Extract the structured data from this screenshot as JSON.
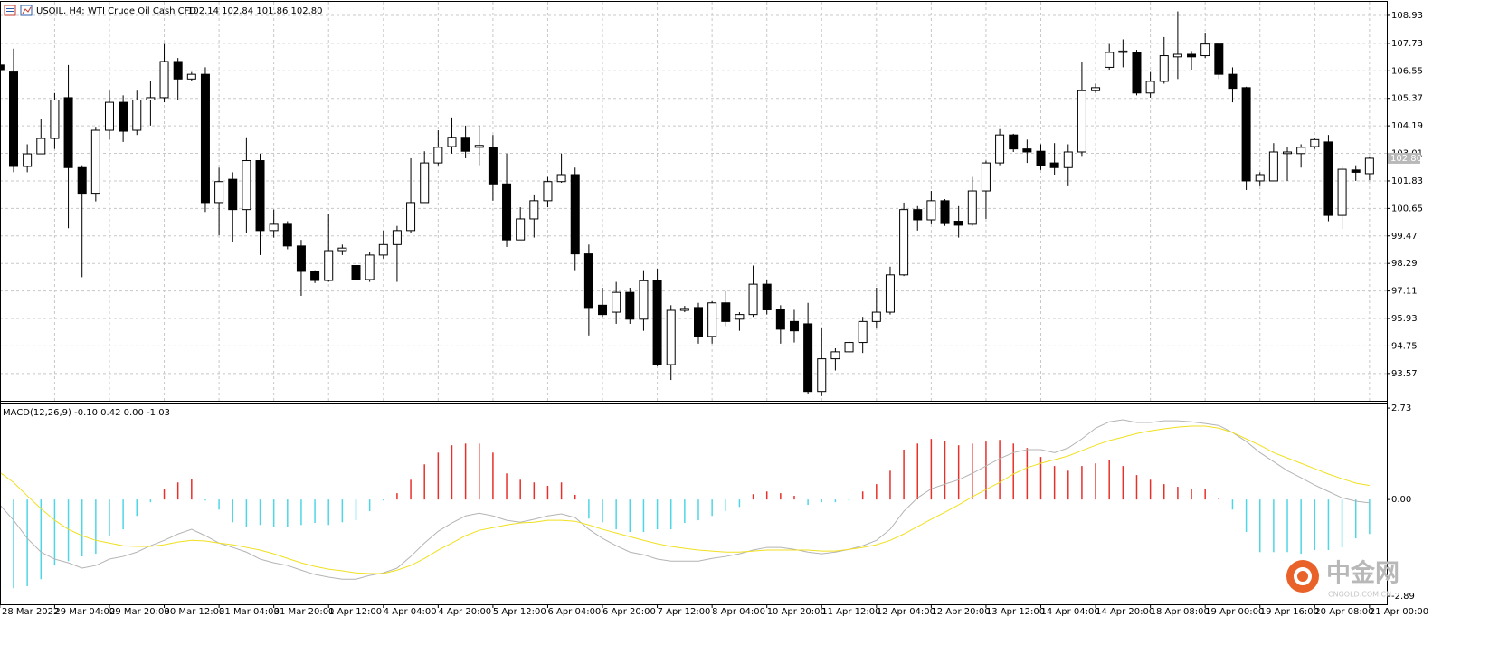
{
  "chart_data": [
    {
      "type": "candlestick",
      "symbol": "USOIL, H4:",
      "title": "WTI Crude Oil Cash CFD",
      "ohlc_text": "102.14 102.84 101.86 102.80",
      "categories": [
        "28 Mar 2022",
        null,
        null,
        null,
        "29 Mar 04:00",
        null,
        null,
        null,
        "29 Mar 20:00",
        null,
        null,
        null,
        "30 Mar 12:00",
        null,
        null,
        null,
        "31 Mar 04:00",
        null,
        null,
        null,
        "31 Mar 20:00",
        null,
        null,
        null,
        "1 Apr 12:00",
        null,
        null,
        null,
        "4 Apr 04:00",
        null,
        null,
        null,
        "4 Apr 20:00",
        null,
        null,
        null,
        "5 Apr 12:00",
        null,
        null,
        null,
        "6 Apr 04:00",
        null,
        null,
        null,
        "6 Apr 20:00",
        null,
        null,
        null,
        "7 Apr 12:00",
        null,
        null,
        null,
        "8 Apr 04:00",
        null,
        null,
        null,
        "10 Apr 20:00",
        null,
        null,
        null,
        "11 Apr 12:00",
        null,
        null,
        null,
        "12 Apr 04:00",
        null,
        null,
        null,
        "12 Apr 20:00",
        null,
        null,
        null,
        "13 Apr 12:00",
        null,
        null,
        null,
        "14 Apr 04:00",
        null,
        null,
        null,
        "14 Apr 20:00",
        null,
        null,
        null,
        "18 Apr 08:00",
        null,
        null,
        null,
        "19 Apr 00:00",
        null,
        null,
        null,
        "19 Apr 16:00",
        null,
        null,
        null,
        "20 Apr 08:00",
        null,
        null,
        null,
        "21 Apr 00:00"
      ],
      "open": [
        106.8,
        106.5,
        102.45,
        102.99,
        103.65,
        105.4,
        102.4,
        101.3,
        104.0,
        105.2,
        104.0,
        105.3,
        105.4,
        106.95,
        106.2,
        106.4,
        100.9,
        101.9,
        100.6,
        102.7,
        99.7,
        99.97,
        99.04,
        97.95,
        97.56,
        98.84,
        98.2,
        97.6,
        98.65,
        99.1,
        99.7,
        100.9,
        102.6,
        103.3,
        103.7,
        103.27,
        103.27,
        101.7,
        99.3,
        100.2,
        100.98,
        101.8,
        102.1,
        98.7,
        96.5,
        96.2,
        97.05,
        95.9,
        97.55,
        93.95,
        96.28,
        96.4,
        95.16,
        96.6,
        95.9,
        96.1,
        97.4,
        96.3,
        95.8,
        95.7,
        92.8,
        94.2,
        94.5,
        94.9,
        95.8,
        96.2,
        97.8,
        100.6,
        100.16,
        100.98,
        100.1,
        99.97,
        101.4,
        102.6,
        103.8,
        103.2,
        103.1,
        102.6,
        102.4,
        103.07,
        105.7,
        106.7,
        107.34,
        107.34,
        105.6,
        106.1,
        107.15,
        107.26,
        107.2,
        107.7,
        106.4,
        105.83,
        101.83,
        101.83,
        103.0,
        103.0,
        103.3,
        103.5,
        100.35,
        102.3,
        102.14
      ],
      "high": [
        107.0,
        107.5,
        103.4,
        104.5,
        105.6,
        106.8,
        102.5,
        104.15,
        105.7,
        105.5,
        105.7,
        106.1,
        107.7,
        107.1,
        106.5,
        106.7,
        102.4,
        102.2,
        103.7,
        103.0,
        100.6,
        100.1,
        99.3,
        98.0,
        100.4,
        99.1,
        98.3,
        98.8,
        99.7,
        99.9,
        102.8,
        103.1,
        104.0,
        104.55,
        104.2,
        104.2,
        103.8,
        103.0,
        100.7,
        101.25,
        102.0,
        103.0,
        102.4,
        99.1,
        97.25,
        97.5,
        97.25,
        98.0,
        98.06,
        96.5,
        96.47,
        96.6,
        96.67,
        97.1,
        96.2,
        98.2,
        97.6,
        96.5,
        96.3,
        96.6,
        95.55,
        94.65,
        95.0,
        96.0,
        97.25,
        98.15,
        100.9,
        100.75,
        101.4,
        101.05,
        100.75,
        102.0,
        102.7,
        104.05,
        103.85,
        103.6,
        103.4,
        103.45,
        103.4,
        106.95,
        106.0,
        107.7,
        107.9,
        107.45,
        106.5,
        108.0,
        109.1,
        107.4,
        108.15,
        107.7,
        106.7,
        105.87,
        102.2,
        103.45,
        103.3,
        103.4,
        103.65,
        103.8,
        102.49,
        102.5,
        102.84
      ],
      "low": [
        106.5,
        102.2,
        102.2,
        102.99,
        103.2,
        99.8,
        97.7,
        100.95,
        103.6,
        103.5,
        103.8,
        104.2,
        105.2,
        105.3,
        106.1,
        100.5,
        99.5,
        99.2,
        99.6,
        98.65,
        99.4,
        98.9,
        96.9,
        97.45,
        97.5,
        98.65,
        97.25,
        97.5,
        98.5,
        97.5,
        99.6,
        100.9,
        102.5,
        103.0,
        102.8,
        102.5,
        100.98,
        99.0,
        99.3,
        99.4,
        100.7,
        101.75,
        98.0,
        95.2,
        96.0,
        95.7,
        95.7,
        95.4,
        93.88,
        93.29,
        96.2,
        94.85,
        94.85,
        95.6,
        95.4,
        96.0,
        96.1,
        94.85,
        94.9,
        92.7,
        92.6,
        93.7,
        94.45,
        94.45,
        95.5,
        96.1,
        97.75,
        99.7,
        99.97,
        99.9,
        99.4,
        99.9,
        100.2,
        102.5,
        103.07,
        102.6,
        102.3,
        102.1,
        101.6,
        102.9,
        105.6,
        106.6,
        106.7,
        105.5,
        105.4,
        106.0,
        106.2,
        106.6,
        107.1,
        106.2,
        105.2,
        101.44,
        101.6,
        101.83,
        101.83,
        102.4,
        103.2,
        100.1,
        99.77,
        101.83,
        101.86
      ],
      "close": [
        106.6,
        102.45,
        102.99,
        103.65,
        105.3,
        102.4,
        101.3,
        104.0,
        105.2,
        103.96,
        105.3,
        105.4,
        106.95,
        106.2,
        106.4,
        100.9,
        101.8,
        100.6,
        102.7,
        99.7,
        99.97,
        99.04,
        97.95,
        97.56,
        98.84,
        98.95,
        97.6,
        98.65,
        99.1,
        99.7,
        100.9,
        102.6,
        103.27,
        103.7,
        103.1,
        103.35,
        101.7,
        99.3,
        100.2,
        100.98,
        101.8,
        102.1,
        98.7,
        96.4,
        96.1,
        97.05,
        95.9,
        97.55,
        93.95,
        96.28,
        96.36,
        95.16,
        96.6,
        95.8,
        96.1,
        97.4,
        96.3,
        95.47,
        95.4,
        92.8,
        94.2,
        94.5,
        94.9,
        95.8,
        96.2,
        97.8,
        100.6,
        100.16,
        100.98,
        100.0,
        99.93,
        101.4,
        102.6,
        103.8,
        103.2,
        103.07,
        102.5,
        102.4,
        103.07,
        105.7,
        105.83,
        107.34,
        107.4,
        105.6,
        106.1,
        107.2,
        107.26,
        107.15,
        107.7,
        106.4,
        105.8,
        101.83,
        102.1,
        103.07,
        103.07,
        103.27,
        103.6,
        100.35,
        102.33,
        102.2,
        102.8
      ],
      "up_color": "#ffffff",
      "down_color": "#000000",
      "ylim": [
        92.4,
        109.51
      ],
      "yticks": [
        108.93,
        107.73,
        106.55,
        105.37,
        104.19,
        103.01,
        101.83,
        100.65,
        99.47,
        98.29,
        97.11,
        95.93,
        94.75,
        93.57
      ],
      "last_price": {
        "value": 102.8,
        "label": "102.80"
      },
      "grid": true
    },
    {
      "type": "macd",
      "title": "MACD(12,26,9) -0.10 0.42 0.00 -1.03",
      "histogram": {
        "positive_color": "#e8302a",
        "negative_color": "#4fd6e6",
        "values": [
          -2.51,
          -2.65,
          -2.59,
          -2.38,
          -1.97,
          -1.84,
          -1.7,
          -1.62,
          -1.08,
          -0.89,
          -0.49,
          -0.08,
          0.3,
          0.51,
          0.62,
          -0.03,
          -0.3,
          -0.68,
          -0.81,
          -0.76,
          -0.81,
          -0.81,
          -0.76,
          -0.7,
          -0.76,
          -0.68,
          -0.62,
          -0.35,
          -0.03,
          0.19,
          0.59,
          1.05,
          1.4,
          1.62,
          1.67,
          1.67,
          1.4,
          0.78,
          0.59,
          0.51,
          0.41,
          0.51,
          0.14,
          -0.57,
          -0.68,
          -0.89,
          -0.97,
          -0.97,
          -0.89,
          -0.89,
          -0.7,
          -0.62,
          -0.49,
          -0.35,
          -0.22,
          0.16,
          0.24,
          0.19,
          0.11,
          -0.16,
          -0.08,
          -0.08,
          -0.03,
          0.24,
          0.46,
          0.86,
          1.49,
          1.67,
          1.81,
          1.76,
          1.62,
          1.67,
          1.73,
          1.78,
          1.67,
          1.54,
          1.27,
          1.0,
          0.86,
          1.0,
          1.08,
          1.19,
          1.0,
          0.73,
          0.59,
          0.46,
          0.38,
          0.32,
          0.32,
          0.03,
          -0.3,
          -0.97,
          -1.57,
          -1.57,
          -1.57,
          -1.62,
          -1.51,
          -1.51,
          -1.43,
          -1.16,
          -1.03
        ]
      },
      "main_line": {
        "color": "#b4b4b4",
        "values": [
          -0.16,
          -0.62,
          -1.16,
          -1.57,
          -1.78,
          -1.89,
          -2.05,
          -1.97,
          -1.78,
          -1.7,
          -1.57,
          -1.38,
          -1.22,
          -1.03,
          -0.89,
          -1.08,
          -1.3,
          -1.43,
          -1.57,
          -1.78,
          -1.89,
          -1.97,
          -2.11,
          -2.24,
          -2.32,
          -2.38,
          -2.38,
          -2.27,
          -2.19,
          -2.05,
          -1.7,
          -1.3,
          -0.95,
          -0.7,
          -0.49,
          -0.41,
          -0.49,
          -0.62,
          -0.68,
          -0.59,
          -0.49,
          -0.43,
          -0.54,
          -0.89,
          -1.16,
          -1.38,
          -1.57,
          -1.65,
          -1.78,
          -1.84,
          -1.84,
          -1.84,
          -1.76,
          -1.7,
          -1.62,
          -1.51,
          -1.43,
          -1.43,
          -1.49,
          -1.57,
          -1.62,
          -1.57,
          -1.49,
          -1.38,
          -1.22,
          -0.89,
          -0.35,
          0.05,
          0.32,
          0.46,
          0.59,
          0.78,
          1.0,
          1.22,
          1.4,
          1.49,
          1.49,
          1.4,
          1.54,
          1.81,
          2.13,
          2.32,
          2.38,
          2.3,
          2.3,
          2.35,
          2.35,
          2.32,
          2.27,
          2.21,
          2.0,
          1.73,
          1.4,
          1.13,
          0.86,
          0.65,
          0.43,
          0.24,
          0.05,
          -0.05,
          -0.1
        ]
      },
      "signal_line": {
        "color": "#f0e020",
        "values": [
          0.81,
          0.51,
          0.11,
          -0.27,
          -0.62,
          -0.89,
          -1.08,
          -1.22,
          -1.3,
          -1.38,
          -1.4,
          -1.4,
          -1.35,
          -1.27,
          -1.22,
          -1.24,
          -1.3,
          -1.35,
          -1.43,
          -1.51,
          -1.62,
          -1.76,
          -1.89,
          -2.0,
          -2.08,
          -2.13,
          -2.19,
          -2.21,
          -2.21,
          -2.11,
          -1.97,
          -1.76,
          -1.51,
          -1.3,
          -1.08,
          -0.92,
          -0.84,
          -0.76,
          -0.7,
          -0.68,
          -0.62,
          -0.62,
          -0.65,
          -0.76,
          -0.89,
          -1.0,
          -1.11,
          -1.22,
          -1.32,
          -1.4,
          -1.46,
          -1.51,
          -1.54,
          -1.57,
          -1.57,
          -1.54,
          -1.51,
          -1.51,
          -1.51,
          -1.51,
          -1.54,
          -1.54,
          -1.49,
          -1.43,
          -1.35,
          -1.22,
          -1.03,
          -0.81,
          -0.59,
          -0.38,
          -0.16,
          0.08,
          0.3,
          0.51,
          0.76,
          0.95,
          1.08,
          1.19,
          1.3,
          1.46,
          1.62,
          1.76,
          1.86,
          1.97,
          2.05,
          2.11,
          2.16,
          2.19,
          2.19,
          2.13,
          2.0,
          1.81,
          1.62,
          1.4,
          1.24,
          1.08,
          0.92,
          0.76,
          0.62,
          0.49,
          0.42
        ]
      },
      "ylim": [
        -3.13,
        2.84
      ],
      "yticks": [
        2.73,
        {
          "value": 0,
          "label": "0.00"
        },
        -2.89
      ]
    }
  ],
  "watermark": {
    "brand": "中金网",
    "site": "CNGOLD.COM.CN"
  }
}
